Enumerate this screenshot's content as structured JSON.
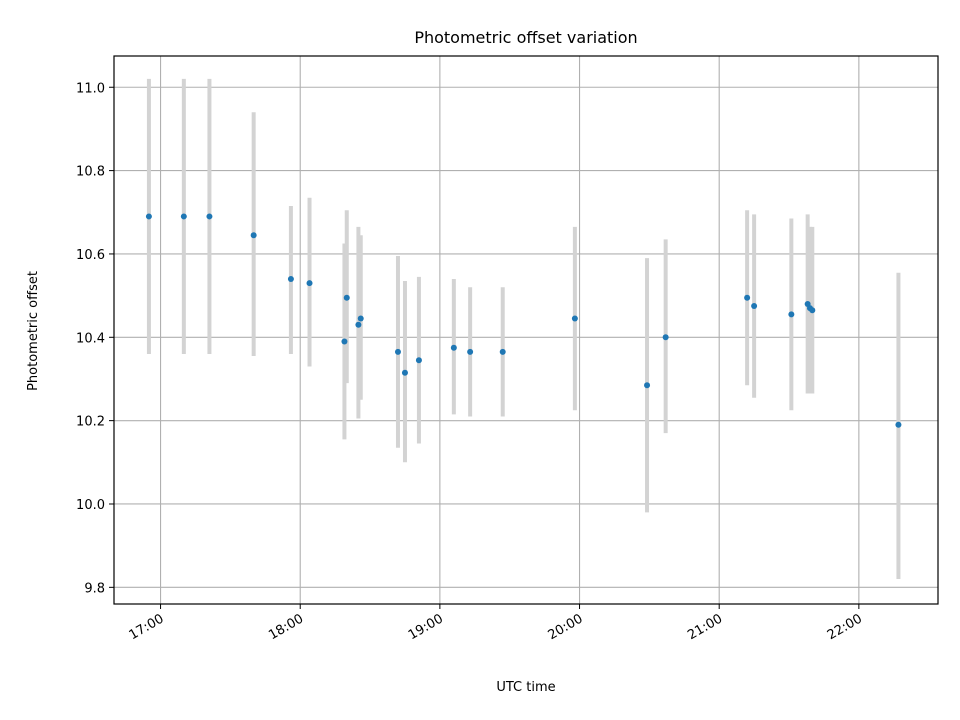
{
  "chart_data": {
    "type": "scatter",
    "title": "Photometric offset variation",
    "xlabel": "UTC time",
    "ylabel": "Photometric offset",
    "x_tick_labels": [
      "17:00",
      "18:00",
      "19:00",
      "20:00",
      "21:00",
      "22:00"
    ],
    "y_tick_labels": [
      "9.8",
      "10.0",
      "10.2",
      "10.4",
      "10.6",
      "10.8",
      "11.0"
    ],
    "y_ticks": [
      9.8,
      10.0,
      10.2,
      10.4,
      10.6,
      10.8,
      11.0
    ],
    "x_ticks": [
      "17:00",
      "18:00",
      "19:00",
      "20:00",
      "21:00",
      "22:00"
    ],
    "xlim": [
      "16:40",
      "22:34"
    ],
    "ylim": [
      9.76,
      11.075
    ],
    "grid": true,
    "point_color": "#1f77b4",
    "errorbar_color": "#d3d3d3",
    "points": [
      {
        "x": "16:55",
        "y": 10.69,
        "low": 10.36,
        "high": 11.02
      },
      {
        "x": "17:10",
        "y": 10.69,
        "low": 10.36,
        "high": 11.02
      },
      {
        "x": "17:21",
        "y": 10.69,
        "low": 10.36,
        "high": 11.02
      },
      {
        "x": "17:40",
        "y": 10.645,
        "low": 10.355,
        "high": 10.94
      },
      {
        "x": "17:56",
        "y": 10.54,
        "low": 10.36,
        "high": 10.715
      },
      {
        "x": "18:04",
        "y": 10.53,
        "low": 10.33,
        "high": 10.735
      },
      {
        "x": "18:19",
        "y": 10.39,
        "low": 10.155,
        "high": 10.625
      },
      {
        "x": "18:20",
        "y": 10.495,
        "low": 10.29,
        "high": 10.705
      },
      {
        "x": "18:25",
        "y": 10.43,
        "low": 10.205,
        "high": 10.665
      },
      {
        "x": "18:26",
        "y": 10.445,
        "low": 10.25,
        "high": 10.645
      },
      {
        "x": "18:42",
        "y": 10.365,
        "low": 10.135,
        "high": 10.595
      },
      {
        "x": "18:45",
        "y": 10.315,
        "low": 10.1,
        "high": 10.535
      },
      {
        "x": "18:51",
        "y": 10.345,
        "low": 10.145,
        "high": 10.545
      },
      {
        "x": "19:06",
        "y": 10.375,
        "low": 10.215,
        "high": 10.54
      },
      {
        "x": "19:13",
        "y": 10.365,
        "low": 10.21,
        "high": 10.52
      },
      {
        "x": "19:27",
        "y": 10.365,
        "low": 10.21,
        "high": 10.52
      },
      {
        "x": "19:58",
        "y": 10.445,
        "low": 10.225,
        "high": 10.665
      },
      {
        "x": "20:29",
        "y": 10.285,
        "low": 9.98,
        "high": 10.59
      },
      {
        "x": "20:37",
        "y": 10.4,
        "low": 10.17,
        "high": 10.635
      },
      {
        "x": "21:12",
        "y": 10.495,
        "low": 10.285,
        "high": 10.705
      },
      {
        "x": "21:15",
        "y": 10.475,
        "low": 10.255,
        "high": 10.695
      },
      {
        "x": "21:31",
        "y": 10.455,
        "low": 10.225,
        "high": 10.685
      },
      {
        "x": "21:38",
        "y": 10.48,
        "low": 10.265,
        "high": 10.695
      },
      {
        "x": "21:39",
        "y": 10.47,
        "low": 10.265,
        "high": 10.665
      },
      {
        "x": "21:40",
        "y": 10.465,
        "low": 10.265,
        "high": 10.665
      },
      {
        "x": "22:17",
        "y": 10.19,
        "low": 9.82,
        "high": 10.555
      }
    ]
  }
}
